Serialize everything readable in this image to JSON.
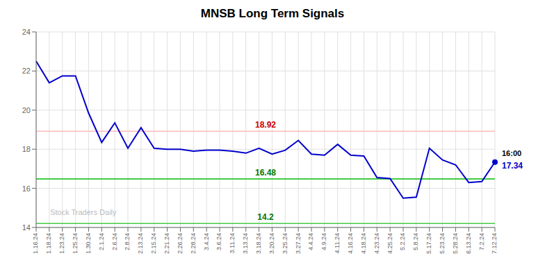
{
  "chart_data": {
    "type": "line",
    "title": "MNSB Long Term Signals",
    "categories": [
      "1.16.24",
      "1.18.24",
      "1.23.24",
      "1.25.24",
      "1.30.24",
      "2.1.24",
      "2.6.24",
      "2.8.24",
      "2.13.24",
      "2.15.24",
      "2.21.24",
      "2.26.24",
      "2.28.24",
      "3.4.24",
      "3.6.24",
      "3.11.24",
      "3.13.24",
      "3.18.24",
      "3.20.24",
      "3.25.24",
      "3.27.24",
      "4.4.24",
      "4.9.24",
      "4.11.24",
      "4.16.24",
      "4.18.24",
      "4.23.24",
      "4.25.24",
      "5.2.24",
      "5.8.24",
      "5.17.24",
      "5.23.24",
      "5.28.24",
      "6.13.24",
      "7.2.24",
      "7.12.24"
    ],
    "values": [
      22.5,
      21.4,
      21.75,
      21.75,
      19.85,
      18.35,
      19.35,
      18.05,
      19.1,
      18.05,
      18.0,
      18.0,
      17.9,
      17.95,
      17.95,
      17.9,
      17.8,
      18.05,
      17.75,
      17.95,
      18.45,
      17.75,
      17.7,
      18.25,
      17.7,
      17.65,
      16.55,
      16.5,
      15.5,
      15.55,
      18.05,
      17.45,
      17.2,
      16.3,
      16.35,
      17.34
    ],
    "color": "#0000cc",
    "ylim": [
      14,
      24
    ],
    "yticks": [
      14,
      16,
      18,
      20,
      22,
      24
    ],
    "grid": true,
    "hlines": [
      {
        "value": 18.92,
        "color": "#ffbbbb",
        "label_color": "#cc0000"
      },
      {
        "value": 16.48,
        "color": "#00bb00",
        "label_color": "#007700"
      },
      {
        "value": 14.2,
        "color": "#44cc44",
        "label_color": "#007700"
      }
    ],
    "last_point": {
      "label": "16:00",
      "value": 17.34
    },
    "watermark": {
      "text": "Stock Traders Daily",
      "color": "#aaaaaa"
    }
  }
}
